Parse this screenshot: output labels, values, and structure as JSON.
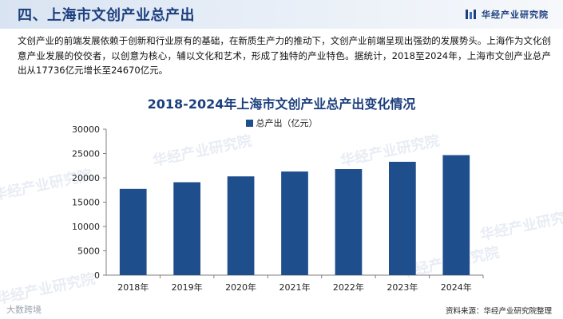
{
  "header": {
    "title": "四、上海市文创产业总产出",
    "brand": "华经产业研究院"
  },
  "intro": "文创产业的前端发展依赖于创新和行业原有的基础，在新质生产力的推动下，文创产业前端呈现出强劲的发展势头。上海作为文化创意产业发展的佼佼者，以创意为核心，辅以文化和艺术，形成了独特的产业特色。据统计，2018至2024年，上海市文创产业总产出从17736亿元增长至24670亿元。",
  "watermark": "华经产业研究院",
  "bottom_mark": "大数跨境",
  "source": "资料来源：华经产业研究院整理",
  "colors": {
    "bar": "#1f4e8c",
    "title": "#1c3f7e"
  },
  "chart_data": {
    "type": "bar",
    "title": "2018-2024年上海市文创产业总产出变化情况",
    "categories": [
      "2018年",
      "2019年",
      "2020年",
      "2021年",
      "2022年",
      "2023年",
      "2024年"
    ],
    "series": [
      {
        "name": "总产出（亿元）",
        "values": [
          17736,
          19100,
          20300,
          21300,
          21800,
          23300,
          24670
        ]
      }
    ],
    "ylim": [
      0,
      30000
    ],
    "yticks": [
      0,
      5000,
      10000,
      15000,
      20000,
      25000,
      30000
    ],
    "legend": "top-center",
    "grid": false
  }
}
